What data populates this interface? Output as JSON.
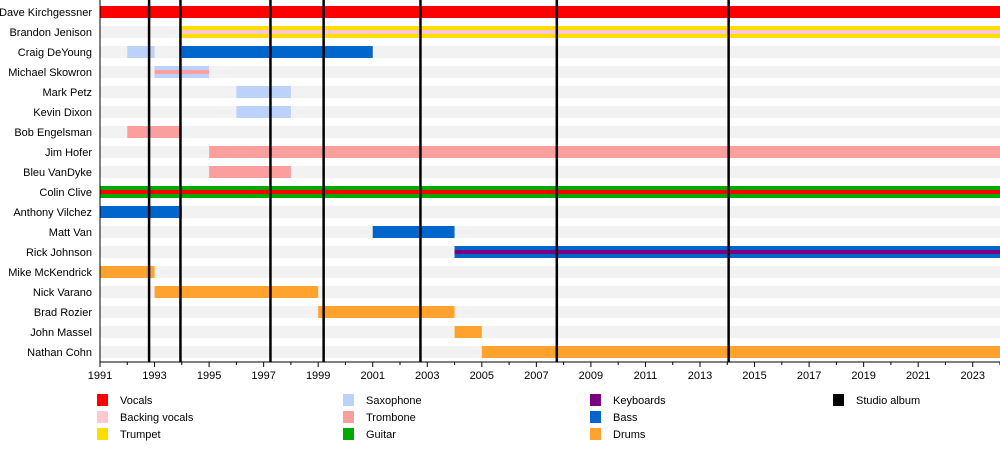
{
  "chart_data": {
    "type": "timeline",
    "xlim": [
      1991,
      2024
    ],
    "ticks": [
      1991,
      1993,
      1995,
      1997,
      1999,
      2001,
      2003,
      2005,
      2007,
      2009,
      2011,
      2013,
      2015,
      2017,
      2019,
      2021,
      2023
    ],
    "colors": {
      "Vocals": "#ff0000",
      "Backing vocals": "#ffc8d0",
      "Trumpet": "#ffdd00",
      "Saxophone": "#bcd2fa",
      "Trombone": "#fa9e9e",
      "Guitar": "#00aa00",
      "Keyboards": "#7a0080",
      "Bass": "#0066cc",
      "Drums": "#ffa22e",
      "Studio album": "#000000"
    },
    "legend": [
      [
        "Vocals",
        "Backing vocals",
        "Trumpet"
      ],
      [
        "Saxophone",
        "Trombone",
        "Guitar"
      ],
      [
        "Keyboards",
        "Bass",
        "Drums"
      ],
      [
        "Studio album"
      ]
    ],
    "studio_albums": [
      1992.8,
      1993.95,
      1997.25,
      1999.2,
      2002.75,
      2007.75,
      2014.05
    ],
    "members": [
      {
        "name": "Dave Kirchgessner",
        "periods": [
          {
            "start": 1991,
            "end": 2024,
            "role": "Vocals"
          }
        ]
      },
      {
        "name": "Brandon Jenison",
        "periods": [
          {
            "start": 1994,
            "end": 2024,
            "role": "Trumpet",
            "secondary": "Backing vocals"
          }
        ]
      },
      {
        "name": "Craig DeYoung",
        "periods": [
          {
            "start": 1992,
            "end": 1993,
            "role": "Saxophone"
          },
          {
            "start": 1994,
            "end": 2001,
            "role": "Bass"
          }
        ]
      },
      {
        "name": "Michael Skowron",
        "periods": [
          {
            "start": 1993,
            "end": 1995,
            "role": "Saxophone",
            "secondary": "Trombone"
          }
        ]
      },
      {
        "name": "Mark Petz",
        "periods": [
          {
            "start": 1996,
            "end": 1998,
            "role": "Saxophone"
          }
        ]
      },
      {
        "name": "Kevin Dixon",
        "periods": [
          {
            "start": 1996,
            "end": 1998,
            "role": "Saxophone"
          }
        ]
      },
      {
        "name": "Bob Engelsman",
        "periods": [
          {
            "start": 1992,
            "end": 1994,
            "role": "Trombone"
          }
        ]
      },
      {
        "name": "Jim Hofer",
        "periods": [
          {
            "start": 1995,
            "end": 2024,
            "role": "Trombone"
          }
        ]
      },
      {
        "name": "Bleu VanDyke",
        "periods": [
          {
            "start": 1995,
            "end": 1998,
            "role": "Trombone"
          }
        ]
      },
      {
        "name": "Colin Clive",
        "periods": [
          {
            "start": 1991,
            "end": 2024,
            "role": "Guitar",
            "secondary": "Vocals"
          }
        ]
      },
      {
        "name": "Anthony Vilchez",
        "periods": [
          {
            "start": 1991,
            "end": 1994,
            "role": "Bass"
          }
        ]
      },
      {
        "name": "Matt Van",
        "periods": [
          {
            "start": 2001,
            "end": 2004,
            "role": "Bass"
          }
        ]
      },
      {
        "name": "Rick Johnson",
        "periods": [
          {
            "start": 2004,
            "end": 2024,
            "role": "Bass",
            "secondary": "Keyboards"
          }
        ]
      },
      {
        "name": "Mike McKendrick",
        "periods": [
          {
            "start": 1991,
            "end": 1993,
            "role": "Drums"
          }
        ]
      },
      {
        "name": "Nick Varano",
        "periods": [
          {
            "start": 1993,
            "end": 1999,
            "role": "Drums"
          }
        ]
      },
      {
        "name": "Brad Rozier",
        "periods": [
          {
            "start": 1999,
            "end": 2004,
            "role": "Drums"
          }
        ]
      },
      {
        "name": "John Massel",
        "periods": [
          {
            "start": 2004,
            "end": 2005,
            "role": "Drums"
          }
        ]
      },
      {
        "name": "Nathan Cohn",
        "periods": [
          {
            "start": 2005,
            "end": 2024,
            "role": "Drums"
          }
        ]
      }
    ]
  }
}
